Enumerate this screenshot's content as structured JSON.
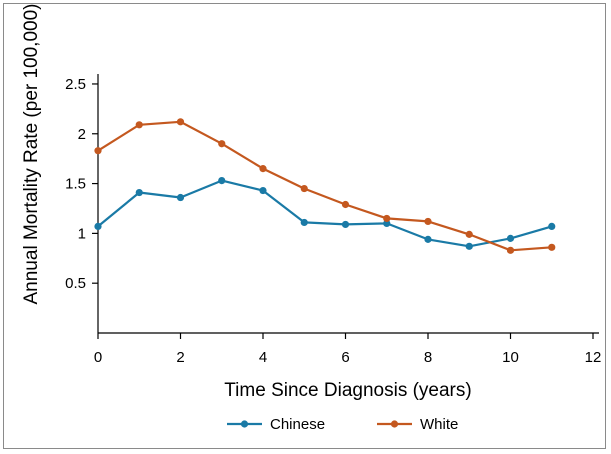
{
  "chart_data": {
    "type": "line",
    "title": "",
    "xlabel": "Time Since Diagnosis (years)",
    "ylabel": "Annual Mortality Rate (per 100,000)",
    "xlim": [
      0,
      12
    ],
    "ylim": [
      0,
      2.6
    ],
    "x_ticks": [
      "0",
      "2",
      "4",
      "6",
      "8",
      "10",
      "12"
    ],
    "y_ticks": [
      "0.5",
      "1",
      "1.5",
      "2",
      "2.5"
    ],
    "grid": false,
    "legend_position": "bottom-center",
    "x": [
      0,
      1,
      2,
      3,
      4,
      5,
      6,
      7,
      8,
      9,
      10,
      11
    ],
    "series": [
      {
        "name": "Chinese",
        "color": "#1a7aa6",
        "values": [
          1.07,
          1.41,
          1.36,
          1.53,
          1.43,
          1.11,
          1.09,
          1.1,
          0.94,
          0.87,
          0.95,
          1.07
        ]
      },
      {
        "name": "White",
        "color": "#c4581f",
        "values": [
          1.83,
          2.09,
          2.12,
          1.9,
          1.65,
          1.45,
          1.29,
          1.15,
          1.12,
          0.99,
          0.83,
          0.86
        ]
      }
    ]
  }
}
